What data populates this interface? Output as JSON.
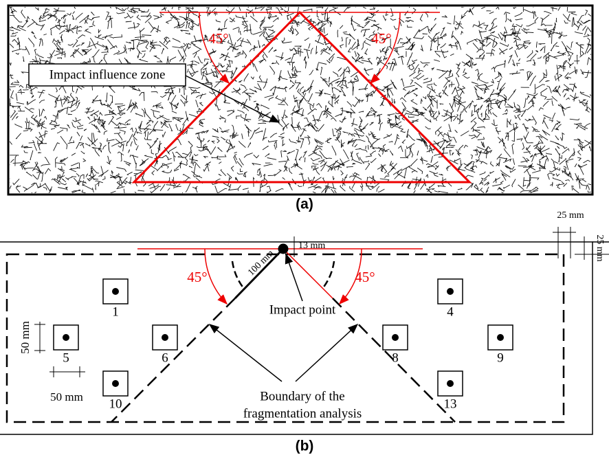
{
  "panel_a": {
    "angle_labels": [
      "45°",
      "45°"
    ],
    "annotation": "Impact influence zone",
    "caption": "(a)"
  },
  "panel_b": {
    "dimensions": {
      "edge_x": "25 mm",
      "edge_y": "25 mm",
      "depth": "13 mm",
      "radius": "100 mm",
      "sample_height": "50 mm",
      "sample_width": "50 mm"
    },
    "angle_labels": [
      "45°",
      "45°"
    ],
    "impact_label": "Impact point",
    "samples": [
      "1",
      "4",
      "5",
      "6",
      "8",
      "9",
      "10",
      "13"
    ],
    "boundary_label": [
      "Boundary of the",
      "fragmentation analysis"
    ],
    "caption": "(b)"
  }
}
